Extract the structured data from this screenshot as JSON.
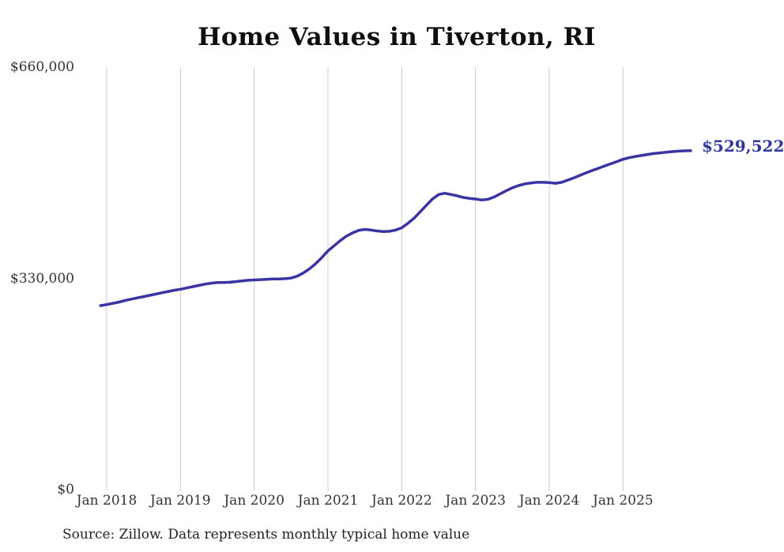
{
  "chart": {
    "title": "Home Values in Tiverton, RI",
    "latest_value_label": "$529,522",
    "source": "Source: Zillow. Data represents monthly typical home value"
  },
  "colors": {
    "line": "#3a34a3",
    "latest_value_text": "#32379b",
    "gridline": "#cccccc",
    "axis_text": "#333333",
    "title_text": "#0e0e0e",
    "background": "#ffffff"
  },
  "chart_data": {
    "type": "line",
    "title": "Home Values in Tiverton, RI",
    "xlabel": "",
    "ylabel": "",
    "ylim": [
      0,
      660000
    ],
    "grid": "vertical-only",
    "legend": "none",
    "x_tick_labels": [
      "Jan 2018",
      "Jan 2019",
      "Jan 2020",
      "Jan 2021",
      "Jan 2022",
      "Jan 2023",
      "Jan 2024",
      "Jan 2025"
    ],
    "y_ticks": [
      {
        "label": "$0",
        "value": 0
      },
      {
        "label": "$330,000",
        "value": 330000
      },
      {
        "label": "$660,000",
        "value": 660000
      }
    ],
    "annotation": {
      "text": "$529,522",
      "value": 529522,
      "position": "line-end"
    },
    "series": [
      {
        "name": "Monthly typical home value",
        "frequency": "monthly",
        "start_month": "2017-12",
        "x_offset_months": -1,
        "final_value": 529522,
        "values": [
          287500,
          289000,
          291000,
          293000,
          295500,
          297500,
          299500,
          301500,
          303500,
          305500,
          307500,
          309500,
          311500,
          313000,
          315000,
          317000,
          319000,
          321000,
          322500,
          323500,
          323500,
          324000,
          325000,
          326000,
          327000,
          327500,
          328000,
          328500,
          329000,
          329000,
          329500,
          330500,
          333500,
          338500,
          345000,
          353000,
          362500,
          373000,
          381000,
          389000,
          396000,
          401000,
          405000,
          406500,
          405500,
          404000,
          403000,
          403500,
          405500,
          409000,
          416000,
          424000,
          434000,
          444000,
          454000,
          461000,
          463000,
          461000,
          459000,
          456500,
          455000,
          454000,
          452500,
          453500,
          457000,
          462000,
          467000,
          471500,
          475000,
          477500,
          479000,
          480000,
          480000,
          479500,
          478500,
          480000,
          483500,
          487000,
          491000,
          495000,
          498500,
          502000,
          505500,
          509000,
          512500,
          516000,
          518500,
          520500,
          522000,
          523500,
          525000,
          526000,
          527000,
          528000,
          528800,
          529200,
          529522
        ]
      }
    ]
  }
}
